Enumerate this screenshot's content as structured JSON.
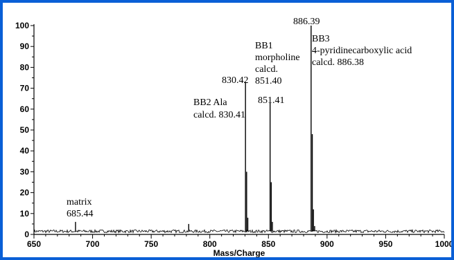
{
  "chart_data": {
    "type": "line",
    "title": "",
    "xlabel": "Mass/Charge",
    "ylabel": "",
    "xlim": [
      650,
      1000
    ],
    "ylim": [
      0,
      100
    ],
    "x_ticks": [
      650,
      700,
      750,
      800,
      850,
      900,
      950,
      1000
    ],
    "y_ticks": [
      0,
      10,
      20,
      30,
      40,
      50,
      60,
      70,
      80,
      90,
      100
    ],
    "grid": false,
    "series": [
      {
        "peaks": [
          {
            "x": 685.44,
            "y": 6
          },
          {
            "x": 782,
            "y": 5
          },
          {
            "x": 830.42,
            "y": 73
          },
          {
            "x": 831.4,
            "y": 30
          },
          {
            "x": 832.4,
            "y": 8
          },
          {
            "x": 851.41,
            "y": 63
          },
          {
            "x": 852.4,
            "y": 25
          },
          {
            "x": 853.4,
            "y": 6
          },
          {
            "x": 886.39,
            "y": 100
          },
          {
            "x": 887.4,
            "y": 48
          },
          {
            "x": 888.4,
            "y": 12
          },
          {
            "x": 889.4,
            "y": 4
          }
        ],
        "baseline": 1.5
      }
    ],
    "annotations": [
      {
        "lines": [
          "matrix",
          "685.44"
        ],
        "x": 685.44,
        "y": 6
      },
      {
        "lines": [
          "BB2 Ala",
          "calcd. 830.41"
        ],
        "x": 830.41,
        "y": 65
      },
      {
        "lines": [
          "830.42"
        ],
        "x": 830.42,
        "y": 73
      },
      {
        "lines": [
          "BB1",
          "morpholine",
          "calcd.",
          "851.40"
        ],
        "x": 851.4,
        "y": 84
      },
      {
        "lines": [
          "851.41"
        ],
        "x": 851.41,
        "y": 63
      },
      {
        "lines": [
          "886.39"
        ],
        "x": 886.39,
        "y": 100
      },
      {
        "lines": [
          "BB3",
          "4-pyridinecarboxylic acid",
          "calcd. 886.38"
        ],
        "x": 886.38,
        "y": 96
      }
    ]
  }
}
